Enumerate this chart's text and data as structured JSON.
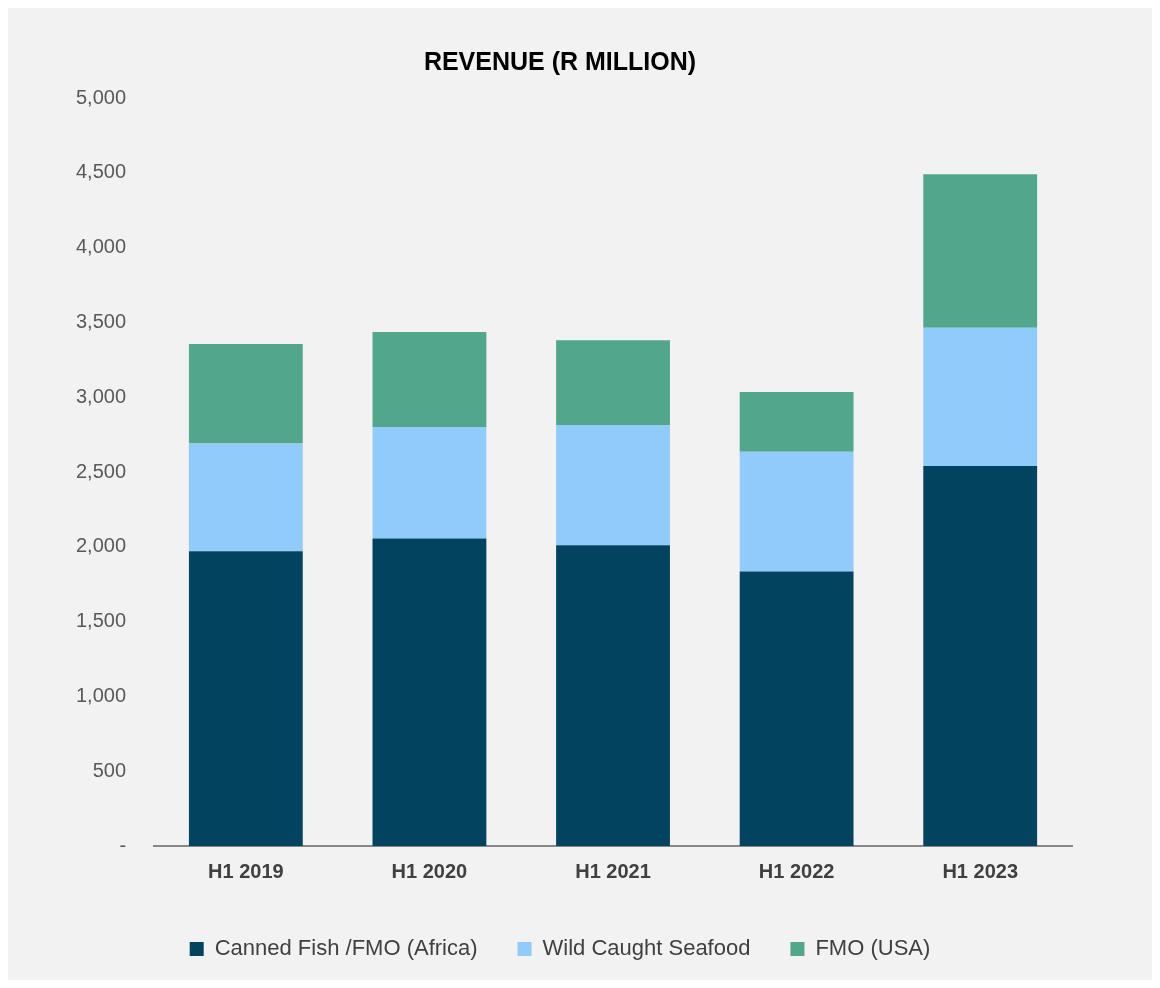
{
  "chart_data": {
    "type": "bar",
    "title": "REVENUE (R MILLION)",
    "categories": [
      "H1 2019",
      "H1 2020",
      "H1 2021",
      "H1 2022",
      "H1 2023"
    ],
    "stacked": true,
    "series": [
      {
        "name": "Canned Fish /FMO (Africa)",
        "color": "#02445f",
        "values": [
          1970,
          2055,
          2010,
          1835,
          2540
        ]
      },
      {
        "name": "Wild Caught Seafood",
        "color": "#90cbfc",
        "values": [
          720,
          745,
          805,
          800,
          925
        ]
      },
      {
        "name": "FMO (USA)",
        "color": "#52a68c",
        "values": [
          665,
          635,
          565,
          400,
          1025
        ]
      }
    ],
    "ylim": [
      0,
      5000
    ],
    "yticks": [
      {
        "value": 0,
        "label": "-"
      },
      500,
      {
        "value": 1000,
        "label": "1,000"
      },
      {
        "value": 1500,
        "label": "1,500"
      },
      {
        "value": 2000,
        "label": "2,000"
      },
      {
        "value": 2500,
        "label": "2,500"
      },
      {
        "value": 3000,
        "label": "3,000"
      },
      {
        "value": 3500,
        "label": "3,500"
      },
      {
        "value": 4000,
        "label": "4,000"
      },
      {
        "value": 4500,
        "label": "4,500"
      },
      {
        "value": 5000,
        "label": "5,000"
      }
    ],
    "grid": false,
    "legend": "bottom"
  }
}
